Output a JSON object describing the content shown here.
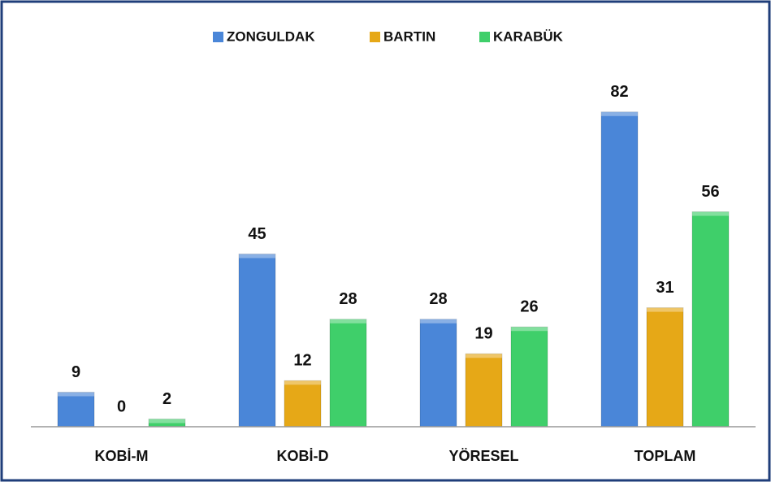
{
  "chart_data": {
    "type": "bar",
    "categories": [
      "KOBİ-M",
      "KOBİ-D",
      "YÖRESEL",
      "TOPLAM"
    ],
    "series": [
      {
        "name": "ZONGULDAK",
        "color": "#4a86d8",
        "values": [
          9,
          45,
          28,
          82
        ]
      },
      {
        "name": "BARTIN",
        "color": "#e6a817",
        "values": [
          0,
          12,
          19,
          31
        ]
      },
      {
        "name": "KARABÜK",
        "color": "#3fcf6a",
        "values": [
          2,
          28,
          26,
          56
        ]
      }
    ],
    "ylim": [
      0,
      90
    ],
    "legend": "top"
  }
}
